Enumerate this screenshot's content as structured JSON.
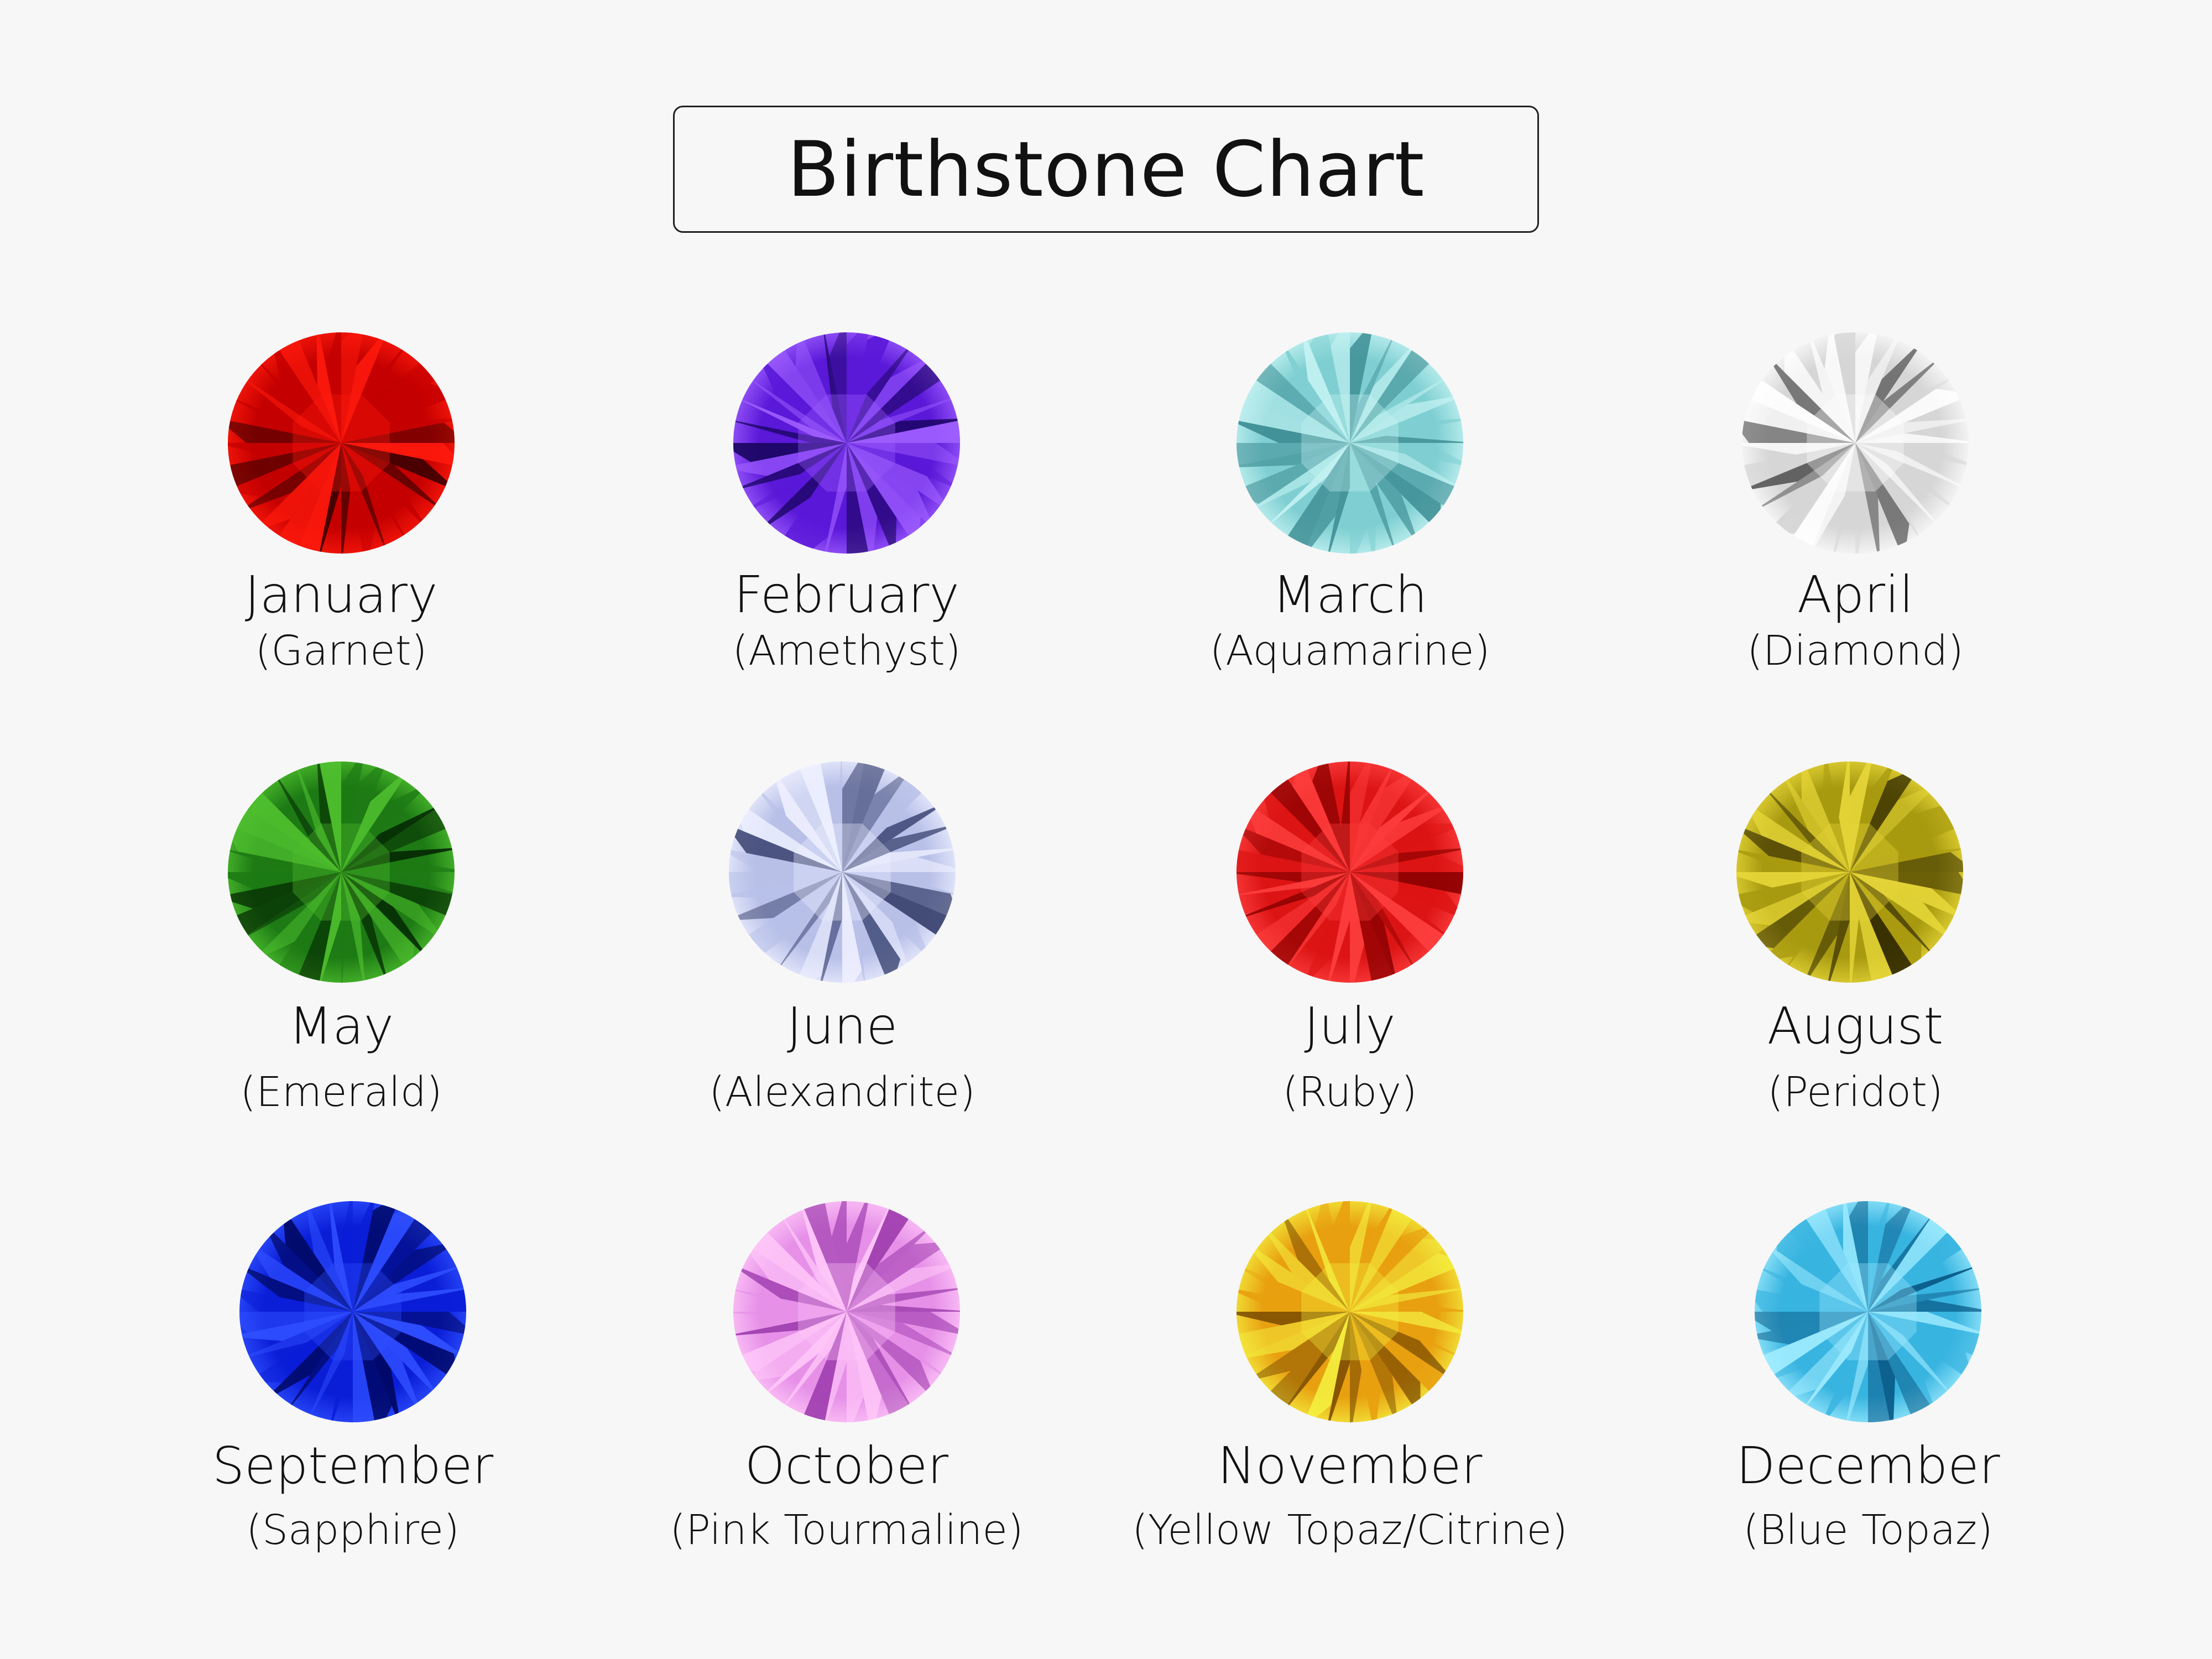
{
  "title": "Birthstone Chart",
  "birthstones": [
    {
      "month": "January",
      "stone": "(Garnet)",
      "colors": [
        "#ff1a0d",
        "#c40000",
        "#3a0000"
      ]
    },
    {
      "month": "February",
      "stone": "(Amethyst)",
      "colors": [
        "#a060ff",
        "#5a18d8",
        "#1a0560"
      ]
    },
    {
      "month": "March",
      "stone": "(Aquamarine)",
      "colors": [
        "#c8f4f4",
        "#7fcfd2",
        "#3f8f95"
      ]
    },
    {
      "month": "April",
      "stone": "(Diamond)",
      "colors": [
        "#ffffff",
        "#d6d6d6",
        "#555555"
      ]
    },
    {
      "month": "May",
      "stone": "(Emerald)",
      "colors": [
        "#4fc02f",
        "#1d7a14",
        "#052a03"
      ]
    },
    {
      "month": "June",
      "stone": "(Alexandrite)",
      "colors": [
        "#eef0ff",
        "#b8c0e8",
        "#3a4470"
      ]
    },
    {
      "month": "July",
      "stone": "(Ruby)",
      "colors": [
        "#ff4040",
        "#dc1414",
        "#8a0000"
      ]
    },
    {
      "month": "August",
      "stone": "(Peridot)",
      "colors": [
        "#e8d83a",
        "#a89a10",
        "#2a2200"
      ]
    },
    {
      "month": "September",
      "stone": "(Sapphire)",
      "colors": [
        "#3050ff",
        "#0a1ed8",
        "#000860"
      ]
    },
    {
      "month": "October",
      "stone": "(Pink Tourmaline)",
      "colors": [
        "#ffc8f8",
        "#e690e8",
        "#a040b0"
      ]
    },
    {
      "month": "November",
      "stone": "(Yellow Topaz/Citrine)",
      "colors": [
        "#f4f040",
        "#e8a010",
        "#7a4a00"
      ]
    },
    {
      "month": "December",
      "stone": "(Blue Topaz)",
      "colors": [
        "#a0ecff",
        "#38b4e0",
        "#0a5a88"
      ]
    }
  ]
}
